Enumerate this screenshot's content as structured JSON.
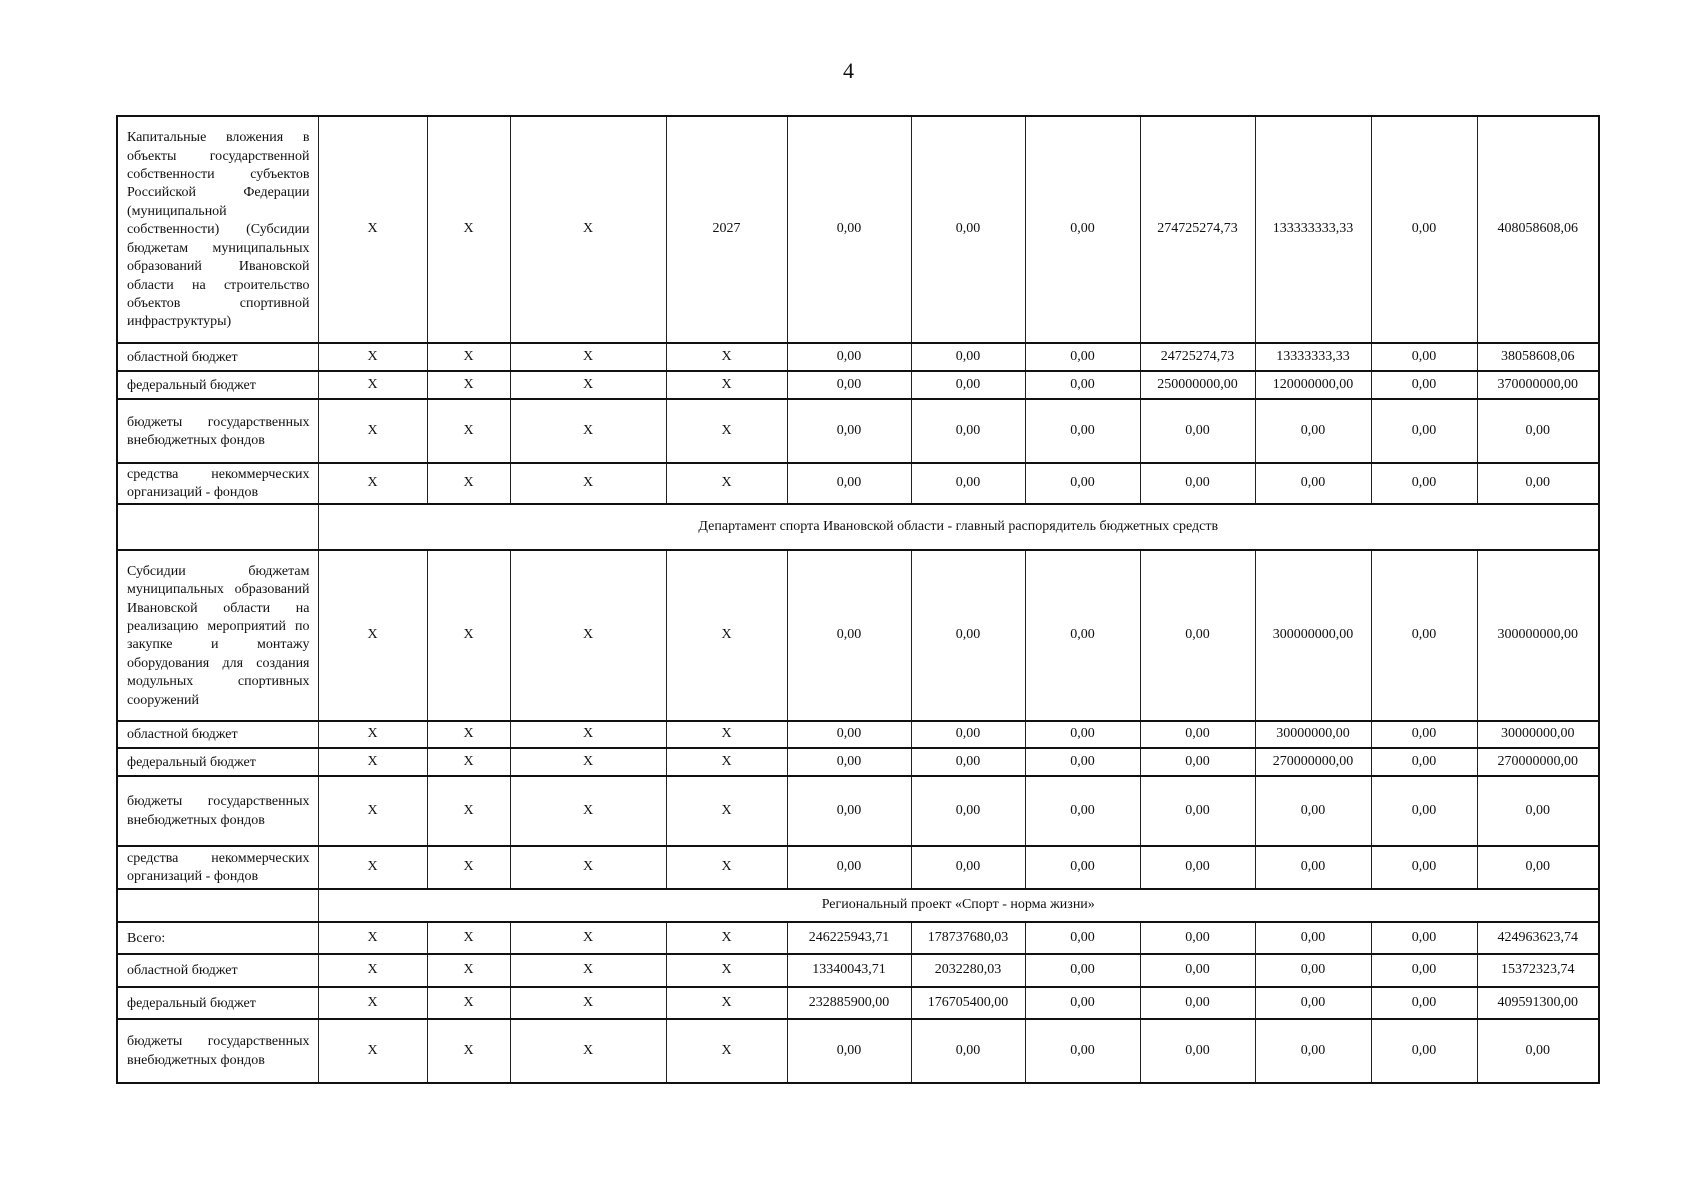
{
  "page_number": "4",
  "rows": [
    {
      "type": "data",
      "h": 227,
      "name": "Капитальные вложения в объекты государственной собственности субъектов Российской Федерации (муниципальной собственности) (Субсидии бюджетам муниципальных образований Ивановской области на строительство объектов спортивной инфраструктуры)",
      "cells": [
        "X",
        "X",
        "X",
        "2027",
        "0,00",
        "0,00",
        "0,00",
        "274725274,73",
        "133333333,33",
        "0,00",
        "408058608,06"
      ]
    },
    {
      "type": "data",
      "h": 28,
      "name": "областной бюджет",
      "cells": [
        "X",
        "X",
        "X",
        "X",
        "0,00",
        "0,00",
        "0,00",
        "24725274,73",
        "13333333,33",
        "0,00",
        "38058608,06"
      ]
    },
    {
      "type": "data",
      "h": 28,
      "name": "федеральный бюджет",
      "cells": [
        "X",
        "X",
        "X",
        "X",
        "0,00",
        "0,00",
        "0,00",
        "250000000,00",
        "120000000,00",
        "0,00",
        "370000000,00"
      ]
    },
    {
      "type": "data",
      "h": 64,
      "name": "бюджеты государственных внебюджетных фондов",
      "cells": [
        "X",
        "X",
        "X",
        "X",
        "0,00",
        "0,00",
        "0,00",
        "0,00",
        "0,00",
        "0,00",
        "0,00"
      ]
    },
    {
      "type": "data",
      "h": 37,
      "name": "средства некоммерческих организаций - фондов",
      "cells": [
        "X",
        "X",
        "X",
        "X",
        "0,00",
        "0,00",
        "0,00",
        "0,00",
        "0,00",
        "0,00",
        "0,00"
      ]
    },
    {
      "type": "section",
      "h": 46,
      "title": "Департамент спорта Ивановской области - главный распорядитель бюджетных средств"
    },
    {
      "type": "data",
      "h": 171,
      "name": "Субсидии бюджетам муниципальных образований Ивановской области на реализацию мероприятий по закупке и монтажу оборудования для создания модульных спортивных сооружений",
      "cells": [
        "X",
        "X",
        "X",
        "X",
        "0,00",
        "0,00",
        "0,00",
        "0,00",
        "300000000,00",
        "0,00",
        "300000000,00"
      ]
    },
    {
      "type": "data",
      "h": 27,
      "name": "областной бюджет",
      "cells": [
        "X",
        "X",
        "X",
        "X",
        "0,00",
        "0,00",
        "0,00",
        "0,00",
        "30000000,00",
        "0,00",
        "30000000,00"
      ]
    },
    {
      "type": "data",
      "h": 28,
      "name": "федеральный бюджет",
      "cells": [
        "X",
        "X",
        "X",
        "X",
        "0,00",
        "0,00",
        "0,00",
        "0,00",
        "270000000,00",
        "0,00",
        "270000000,00"
      ]
    },
    {
      "type": "data",
      "h": 70,
      "name": "бюджеты государственных внебюджетных фондов",
      "cells": [
        "X",
        "X",
        "X",
        "X",
        "0,00",
        "0,00",
        "0,00",
        "0,00",
        "0,00",
        "0,00",
        "0,00"
      ]
    },
    {
      "type": "data",
      "h": 43,
      "name": "средства некоммерческих организаций - фондов",
      "cells": [
        "X",
        "X",
        "X",
        "X",
        "0,00",
        "0,00",
        "0,00",
        "0,00",
        "0,00",
        "0,00",
        "0,00"
      ]
    },
    {
      "type": "section",
      "h": 33,
      "title": "Региональный проект «Спорт - норма жизни»"
    },
    {
      "type": "data",
      "h": 32,
      "name": "Всего:",
      "cells": [
        "X",
        "X",
        "X",
        "X",
        "246225943,71",
        "178737680,03",
        "0,00",
        "0,00",
        "0,00",
        "0,00",
        "424963623,74"
      ]
    },
    {
      "type": "data",
      "h": 33,
      "name": "областной бюджет",
      "cells": [
        "X",
        "X",
        "X",
        "X",
        "13340043,71",
        "2032280,03",
        "0,00",
        "0,00",
        "0,00",
        "0,00",
        "15372323,74"
      ]
    },
    {
      "type": "data",
      "h": 32,
      "name": "федеральный бюджет",
      "cells": [
        "X",
        "X",
        "X",
        "X",
        "232885900,00",
        "176705400,00",
        "0,00",
        "0,00",
        "0,00",
        "0,00",
        "409591300,00"
      ]
    },
    {
      "type": "data",
      "h": 64,
      "name": "бюджеты государственных внебюджетных фондов",
      "cells": [
        "X",
        "X",
        "X",
        "X",
        "0,00",
        "0,00",
        "0,00",
        "0,00",
        "0,00",
        "0,00",
        "0,00"
      ]
    }
  ]
}
